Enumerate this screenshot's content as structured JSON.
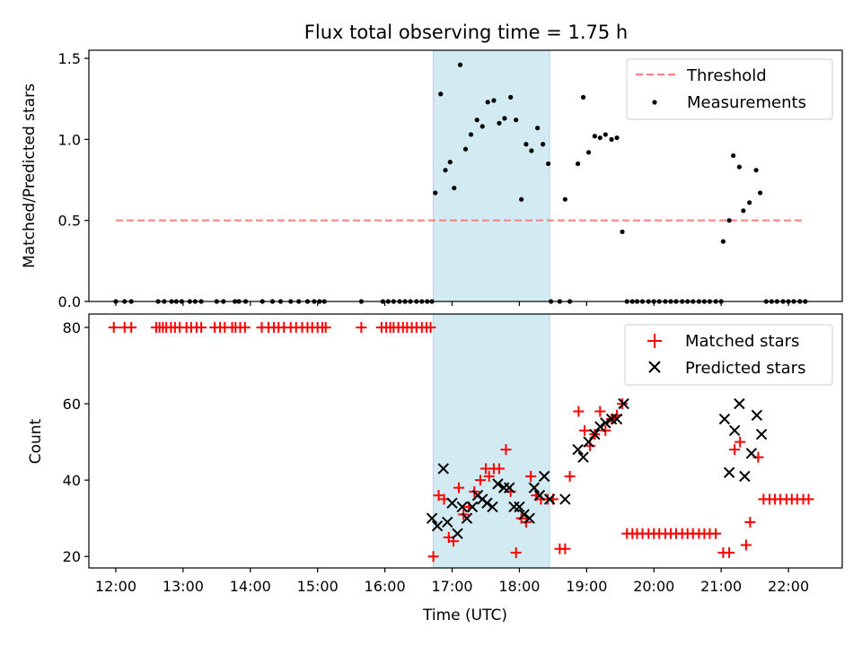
{
  "chart_data": [
    {
      "type": "scatter",
      "title": "Flux total observing time = 1.75 h",
      "ylabel": "Matched/Predicted stars",
      "ylim": [
        0,
        1.55
      ],
      "yticks": [
        0.0,
        0.5,
        1.0,
        1.5
      ],
      "ytick_labels": [
        "0.0",
        "0.5",
        "1.0",
        "1.5"
      ],
      "legend_placement": "upper right",
      "colors": {
        "threshold": "#ff7f7f",
        "measurements": "#000000",
        "shade": "#add8e6"
      },
      "shaded_region": {
        "x": [
          16.72,
          18.45
        ]
      },
      "series": [
        {
          "name": "Threshold",
          "kind": "line",
          "style": "dashed",
          "x": [
            12.0,
            22.25
          ],
          "y": [
            0.5,
            0.5
          ]
        },
        {
          "name": "Measurements",
          "kind": "points",
          "x": [
            12.0,
            12.13,
            12.23,
            12.63,
            12.72,
            12.83,
            12.9,
            12.98,
            13.1,
            13.18,
            13.27,
            13.5,
            13.6,
            13.77,
            13.83,
            13.93,
            14.18,
            14.33,
            14.45,
            14.6,
            14.72,
            14.85,
            14.95,
            15.03,
            15.1,
            15.65,
            15.97,
            16.05,
            16.13,
            16.22,
            16.3,
            16.38,
            16.47,
            16.55,
            16.63,
            16.7,
            16.75,
            16.83,
            16.9,
            16.97,
            17.03,
            17.12,
            17.2,
            17.28,
            17.37,
            17.45,
            17.53,
            17.62,
            17.7,
            17.78,
            17.87,
            17.95,
            18.03,
            18.1,
            18.18,
            18.27,
            18.35,
            18.43,
            18.47,
            18.6,
            18.68,
            18.75,
            18.87,
            18.95,
            19.03,
            19.12,
            19.2,
            19.28,
            19.37,
            19.45,
            19.53,
            19.6,
            19.68,
            19.75,
            19.83,
            19.92,
            20.0,
            20.08,
            20.17,
            20.25,
            20.33,
            20.42,
            20.5,
            20.58,
            20.67,
            20.75,
            20.83,
            20.92,
            21.0,
            21.03,
            21.12,
            21.18,
            21.27,
            21.33,
            21.42,
            21.52,
            21.58,
            21.67,
            21.75,
            21.83,
            21.92,
            22.0,
            22.08,
            22.17,
            22.25
          ],
          "y": [
            0,
            0,
            0,
            0,
            0,
            0,
            0,
            0,
            0,
            0,
            0,
            0,
            0,
            0,
            0,
            0,
            0,
            0,
            0,
            0,
            0,
            0,
            0,
            0,
            0,
            0,
            0,
            0,
            0,
            0,
            0,
            0,
            0,
            0,
            0,
            0,
            0.67,
            1.28,
            0.81,
            0.86,
            0.7,
            1.46,
            0.94,
            1.03,
            1.12,
            1.08,
            1.23,
            1.24,
            1.1,
            1.13,
            1.26,
            1.12,
            0.63,
            0.97,
            0.93,
            1.07,
            0.97,
            0.85,
            0,
            0,
            0.63,
            0,
            0.85,
            1.26,
            0.92,
            1.02,
            1.01,
            1.03,
            1.0,
            1.01,
            0.43,
            0,
            0,
            0,
            0,
            0,
            0,
            0,
            0,
            0,
            0,
            0,
            0,
            0,
            0,
            0,
            0,
            0,
            0,
            0.37,
            0.5,
            0.9,
            0.83,
            0.56,
            0.61,
            0.81,
            0.67,
            0,
            0,
            0,
            0,
            0,
            0,
            0,
            0
          ]
        }
      ]
    },
    {
      "type": "scatter",
      "title": "",
      "xlabel": "Time (UTC)",
      "ylabel": "Count",
      "ylim": [
        17,
        83.5
      ],
      "xlim": [
        11.6,
        22.8
      ],
      "yticks": [
        20,
        40,
        60,
        80
      ],
      "ytick_labels": [
        "20",
        "40",
        "60",
        "80"
      ],
      "xticks": [
        12,
        13,
        14,
        15,
        16,
        17,
        18,
        19,
        20,
        21,
        22
      ],
      "xtick_labels": [
        "12:00",
        "13:00",
        "14:00",
        "15:00",
        "16:00",
        "17:00",
        "18:00",
        "19:00",
        "20:00",
        "21:00",
        "22:00"
      ],
      "legend_placement": "upper right",
      "colors": {
        "matched": "#ff0000",
        "predicted": "#000000",
        "shade": "#add8e6"
      },
      "shaded_region": {
        "x": [
          16.72,
          18.45
        ]
      },
      "series": [
        {
          "name": "Matched stars",
          "marker": "+",
          "x": [
            11.97,
            12.13,
            12.23,
            12.6,
            12.65,
            12.7,
            12.75,
            12.82,
            12.88,
            12.95,
            13.05,
            13.12,
            13.2,
            13.27,
            13.47,
            13.55,
            13.62,
            13.73,
            13.78,
            13.85,
            13.92,
            14.17,
            14.27,
            14.35,
            14.42,
            14.5,
            14.6,
            14.68,
            14.77,
            14.85,
            14.92,
            15.0,
            15.07,
            15.12,
            15.65,
            15.95,
            16.02,
            16.08,
            16.13,
            16.2,
            16.27,
            16.33,
            16.4,
            16.47,
            16.55,
            16.62,
            16.68,
            16.72,
            16.8,
            16.88,
            16.95,
            17.02,
            17.1,
            17.17,
            17.25,
            17.33,
            17.42,
            17.5,
            17.55,
            17.62,
            17.7,
            17.8,
            17.87,
            17.95,
            18.03,
            18.1,
            18.17,
            18.25,
            18.32,
            18.42,
            18.5,
            18.6,
            18.68,
            18.75,
            18.88,
            18.97,
            19.05,
            19.12,
            19.2,
            19.28,
            19.37,
            19.45,
            19.53,
            19.6,
            19.68,
            19.75,
            19.83,
            19.92,
            20.0,
            20.08,
            20.17,
            20.25,
            20.33,
            20.42,
            20.5,
            20.58,
            20.67,
            20.75,
            20.83,
            20.92,
            21.03,
            21.12,
            21.2,
            21.28,
            21.37,
            21.43,
            21.55,
            21.63,
            21.72,
            21.8,
            21.88,
            21.97,
            22.05,
            22.13,
            22.22,
            22.3
          ],
          "y": [
            80,
            80,
            80,
            80,
            80,
            80,
            80,
            80,
            80,
            80,
            80,
            80,
            80,
            80,
            80,
            80,
            80,
            80,
            80,
            80,
            80,
            80,
            80,
            80,
            80,
            80,
            80,
            80,
            80,
            80,
            80,
            80,
            80,
            80,
            80,
            80,
            80,
            80,
            80,
            80,
            80,
            80,
            80,
            80,
            80,
            80,
            80,
            20,
            36,
            35,
            25,
            24,
            38,
            31,
            33,
            37,
            40,
            43,
            41,
            43,
            43,
            48,
            37,
            21,
            30,
            29,
            41,
            36,
            35,
            35,
            35,
            22,
            22,
            41,
            58,
            53,
            49,
            52,
            58,
            53,
            56,
            57,
            60,
            26,
            26,
            26,
            26,
            26,
            26,
            26,
            26,
            26,
            26,
            26,
            26,
            26,
            26,
            26,
            26,
            26,
            21,
            21,
            48,
            50,
            23,
            29,
            46,
            35,
            35,
            35,
            35,
            35,
            35,
            35,
            35,
            35
          ]
        },
        {
          "name": "Predicted stars",
          "marker": "x",
          "x": [
            16.7,
            16.78,
            16.87,
            16.93,
            17.0,
            17.08,
            17.15,
            17.22,
            17.3,
            17.38,
            17.45,
            17.52,
            17.6,
            17.68,
            17.77,
            17.85,
            17.92,
            18.0,
            18.07,
            18.15,
            18.22,
            18.3,
            18.37,
            18.45,
            18.68,
            18.87,
            18.95,
            19.03,
            19.12,
            19.2,
            19.28,
            19.37,
            19.45,
            19.55,
            21.05,
            21.12,
            21.2,
            21.27,
            21.35,
            21.45,
            21.53,
            21.6
          ],
          "y": [
            30,
            28,
            43,
            29,
            34,
            26,
            33,
            30,
            33,
            36,
            35,
            34,
            33,
            39,
            38,
            38,
            33,
            33,
            31,
            30,
            38,
            36,
            41,
            35,
            35,
            48,
            46,
            50,
            52,
            54,
            55,
            56,
            56,
            60,
            56,
            42,
            53,
            60,
            41,
            47,
            57,
            52
          ]
        }
      ]
    }
  ]
}
